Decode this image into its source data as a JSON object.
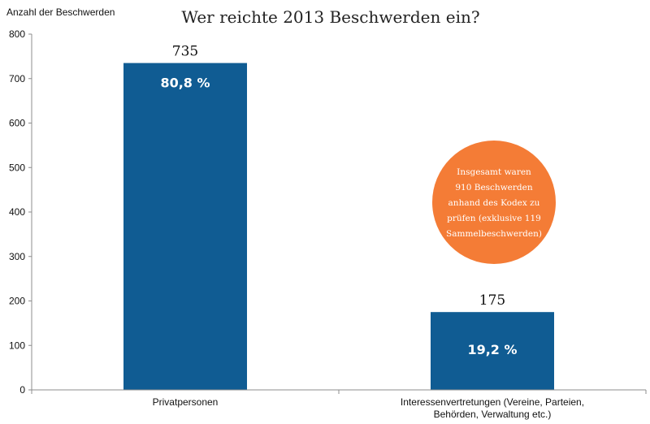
{
  "chart_data": {
    "type": "bar",
    "title": "Wer reichte 2013 Beschwerden ein?",
    "ylabel": "Anzahl der  Beschwerden",
    "xlabel": "",
    "ylim": [
      0,
      800
    ],
    "yticks": [
      "0",
      "100",
      "200",
      "300",
      "400",
      "500",
      "600",
      "700",
      "800"
    ],
    "categories": [
      [
        "Privatpersonen"
      ],
      [
        "Interessenvertretungen (Vereine, Parteien,",
        "Behörden, Verwaltung etc.)"
      ]
    ],
    "values": [
      735,
      175
    ],
    "value_labels": [
      "735",
      "175"
    ],
    "percent_labels": [
      "80,8 %",
      "19,2 %"
    ],
    "bar_color": "#105c93",
    "grid": false,
    "annotation": {
      "lines": [
        "Insgesamt waren",
        "910 Beschwerden",
        "anhand des Kodex zu",
        "prüfen (exklusive 119",
        "Sammelbeschwerden)"
      ],
      "color": "#f47c36"
    }
  }
}
